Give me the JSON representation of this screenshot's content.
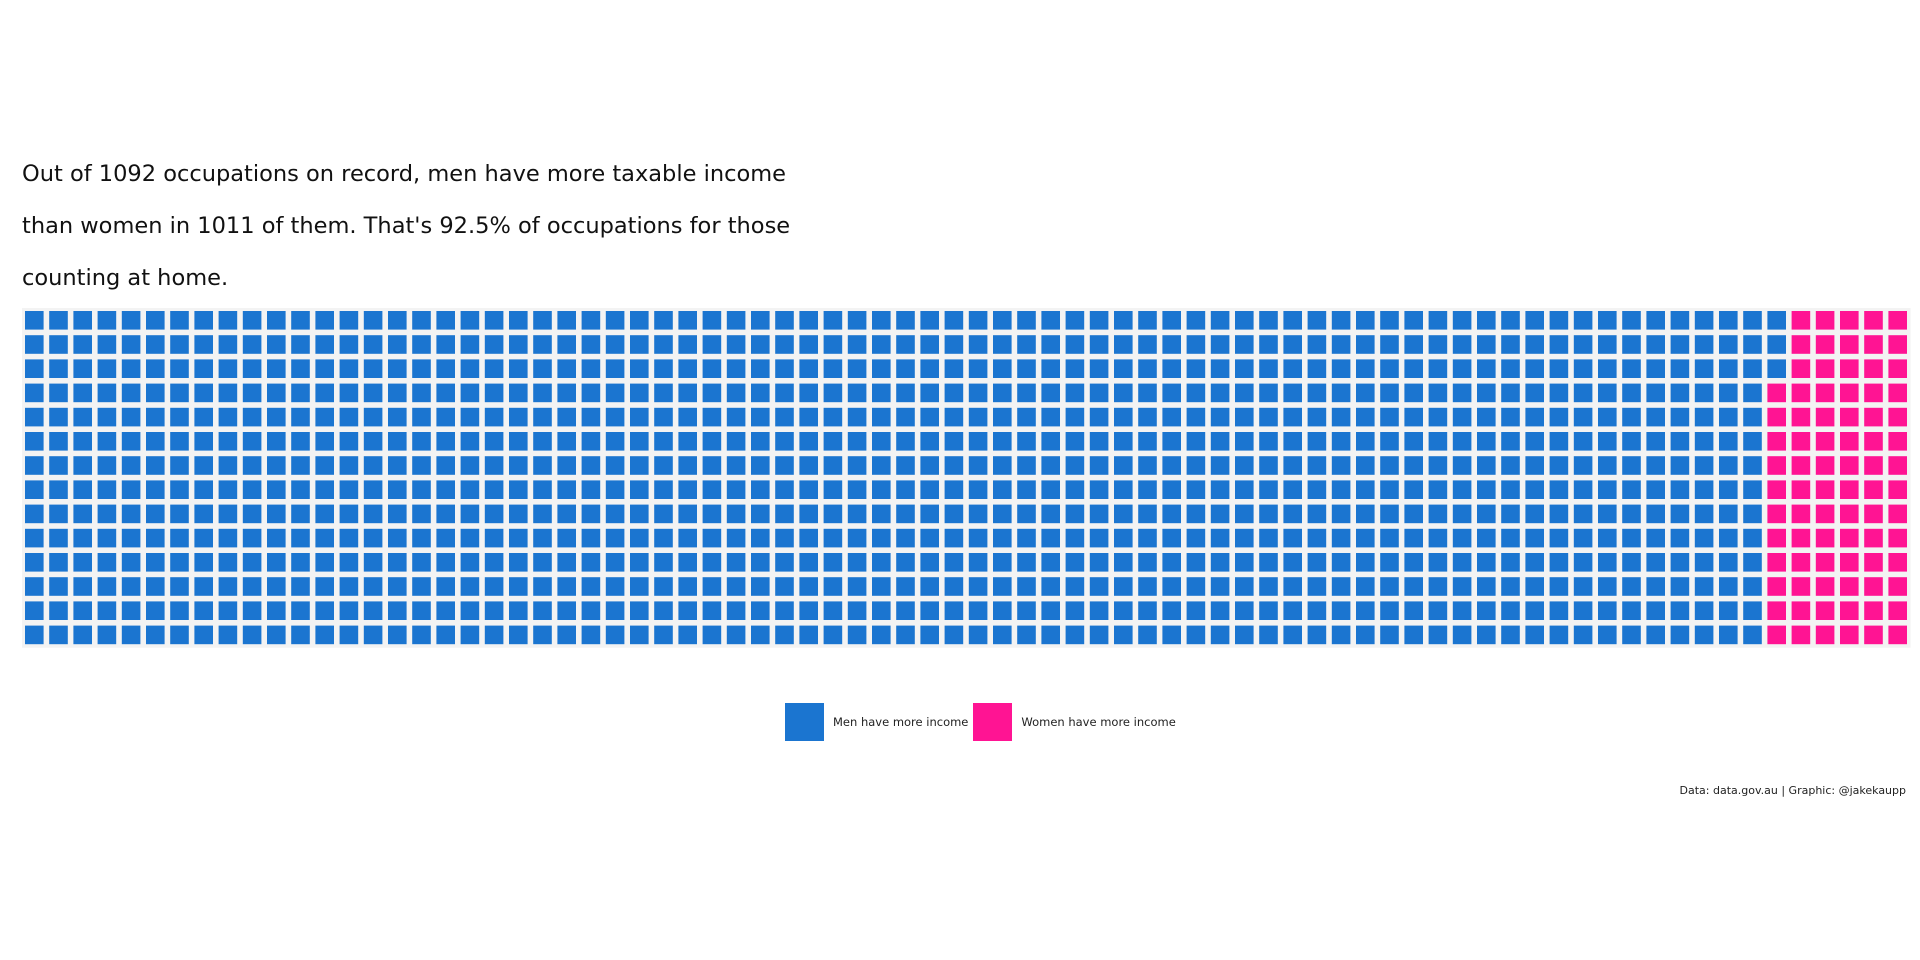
{
  "chart_data": {
    "type": "waffle",
    "title": "Out of 1092 occupations on record, men have more taxable income than women in 1011 of them. That's 92.5% of occupations for those counting at home.",
    "total": 1092,
    "rows": 14,
    "series": [
      {
        "name": "Men have more income",
        "value": 1011,
        "color": "#1b75d0"
      },
      {
        "name": "Women have more income",
        "value": 81,
        "color": "#ff1493"
      }
    ],
    "caption": "Data: data.gov.au | Graphic: @jakekaupp"
  }
}
